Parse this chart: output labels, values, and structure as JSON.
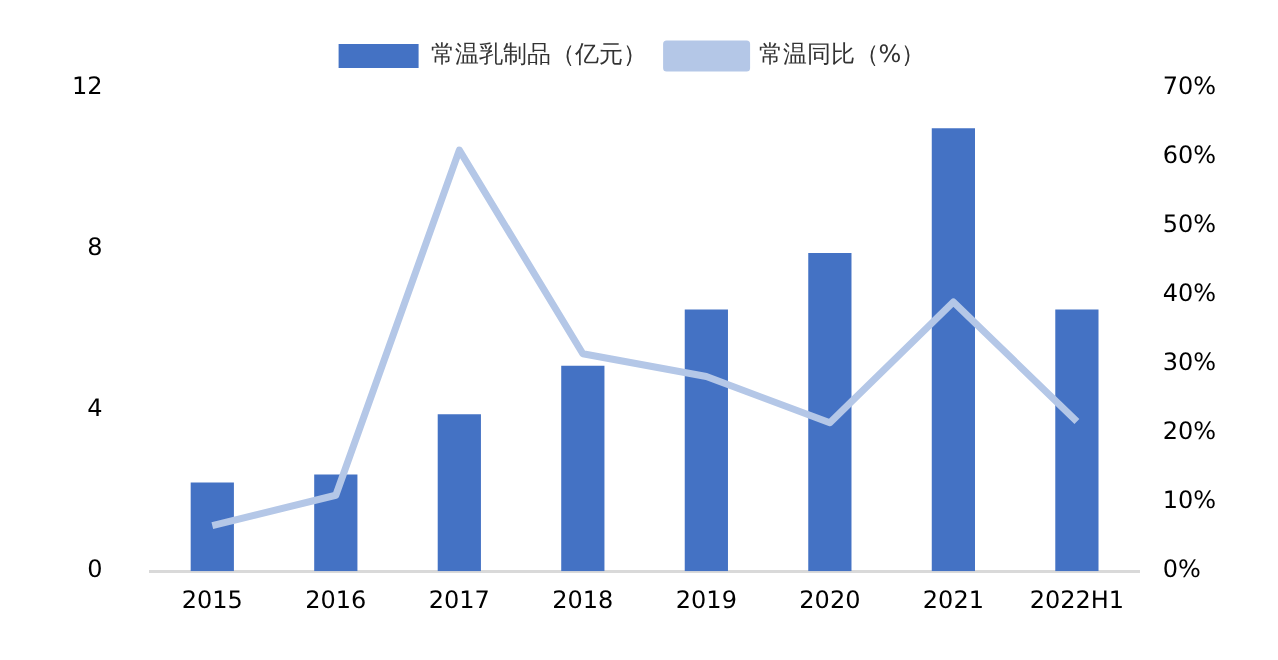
{
  "chart_data": {
    "type": "bar",
    "categories": [
      "2015",
      "2016",
      "2017",
      "2018",
      "2019",
      "2020",
      "2021",
      "2022H1"
    ],
    "series": [
      {
        "name": "常温乳制品（亿元）",
        "color": "#4472c4",
        "values": [
          2.2,
          2.4,
          3.9,
          5.1,
          6.5,
          7.9,
          11.0,
          6.5
        ]
      },
      {
        "name": "常温同比（%）",
        "type": "line",
        "axis": "y2",
        "color": "#b4c7e7",
        "marker": "none",
        "values": [
          6.6,
          11,
          61,
          31.5,
          28.2,
          21.5,
          39,
          21.7
        ]
      }
    ],
    "ylim": [
      0,
      12
    ],
    "yticks": [
      0,
      4,
      8,
      12
    ],
    "y2lim": [
      0,
      70
    ],
    "y2ticks": [
      {
        "value": 0,
        "label": "0%"
      },
      {
        "value": 10,
        "label": "10%"
      },
      {
        "value": 20,
        "label": "20%"
      },
      {
        "value": 30,
        "label": "30%"
      },
      {
        "value": 40,
        "label": "40%"
      },
      {
        "value": 50,
        "label": "50%"
      },
      {
        "value": 60,
        "label": "60%"
      },
      {
        "value": 70,
        "label": "70%"
      }
    ],
    "grid": false,
    "legend": "top"
  }
}
